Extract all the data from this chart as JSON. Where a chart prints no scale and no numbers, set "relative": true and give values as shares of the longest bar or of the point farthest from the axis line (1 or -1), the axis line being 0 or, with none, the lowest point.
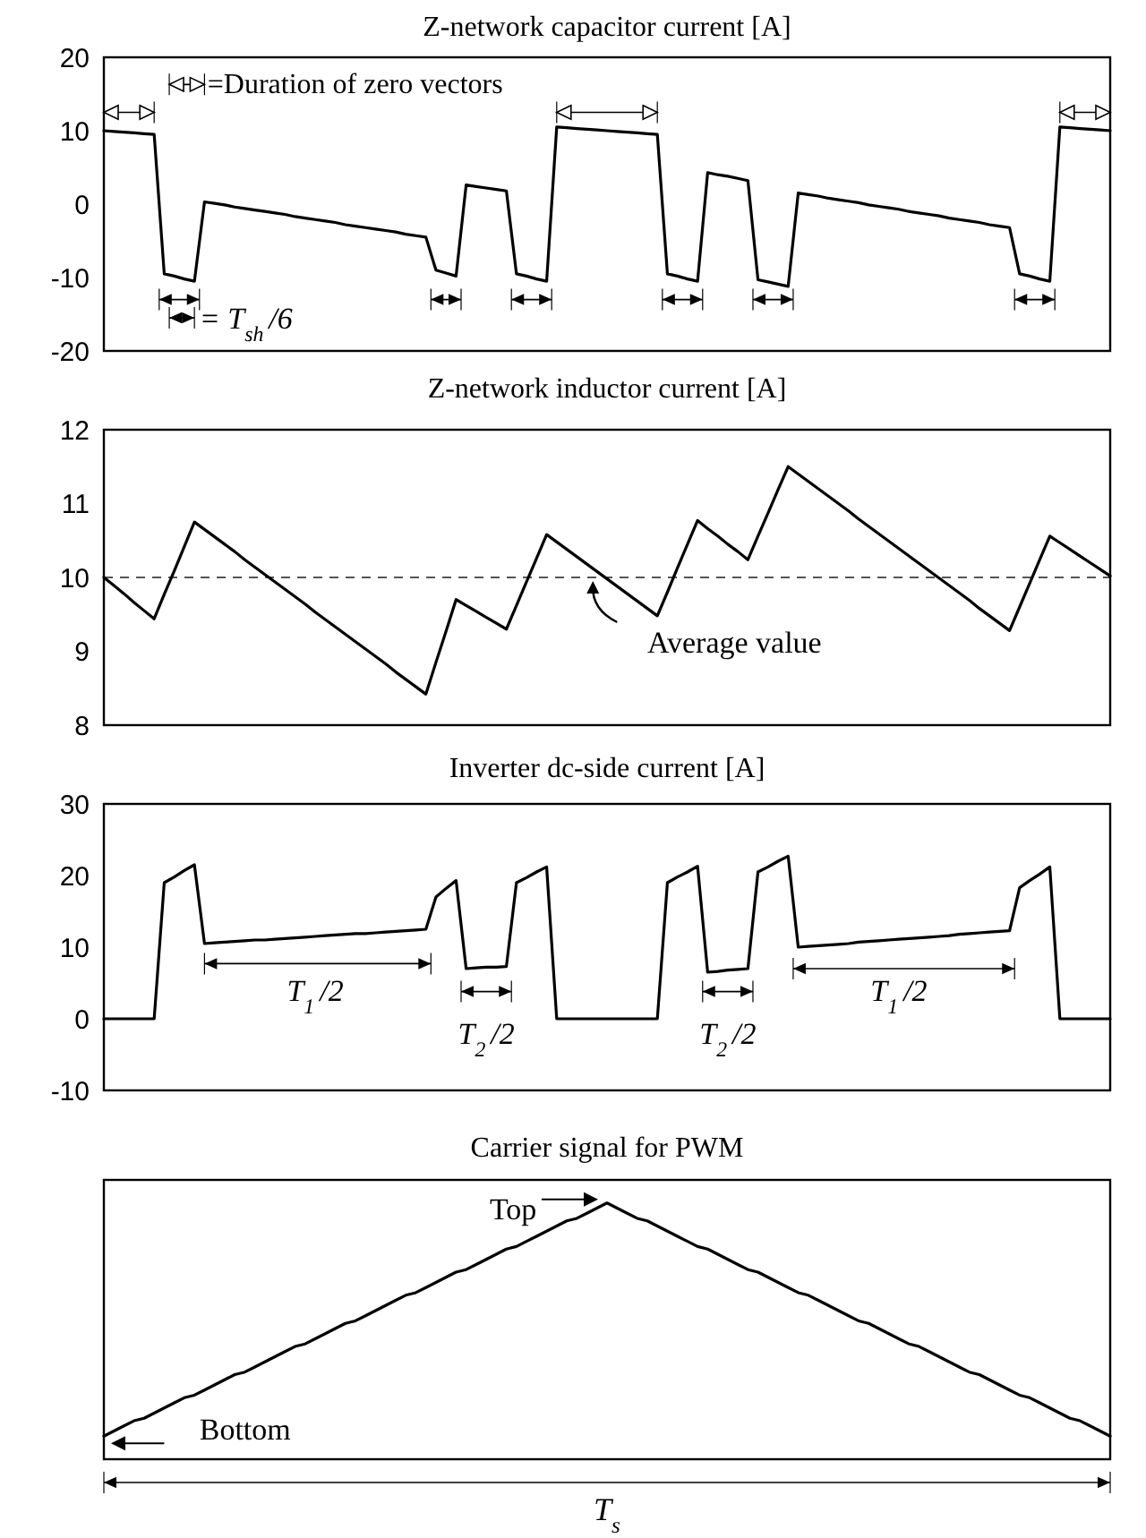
{
  "chart_data": [
    {
      "type": "line",
      "title": "Z-network capacitor current [A]",
      "categories": [
        null,
        null,
        null,
        null,
        null,
        null,
        null,
        null,
        null,
        null,
        null,
        null,
        null,
        null,
        null,
        null,
        null,
        null,
        null,
        null,
        null,
        null,
        null,
        null,
        null,
        null,
        null,
        null,
        null,
        null,
        null,
        null,
        null,
        null,
        null,
        null,
        null,
        null,
        null,
        null,
        null,
        null,
        null,
        null,
        null,
        null,
        null,
        null,
        null,
        null,
        null,
        null,
        null,
        null,
        null,
        null,
        null,
        null,
        null,
        null,
        null,
        null,
        null,
        null,
        null,
        null,
        null,
        null,
        null,
        null,
        null,
        null,
        null,
        null,
        null,
        null,
        null,
        null,
        null,
        null,
        null,
        null,
        null,
        null,
        null,
        null,
        null,
        null,
        null,
        null,
        null,
        null,
        null,
        null,
        null,
        null,
        null,
        null,
        null,
        null,
        null
      ],
      "ylim": [
        -20,
        20
      ],
      "yticks": [
        -20,
        -10,
        0,
        10,
        20
      ],
      "tick_labels": "y",
      "annotations": [
        "=Duration of zero vectors",
        "= T$_{sh}$/6"
      ],
      "series": [
        {
          "color": "#000000",
          "values": [
            10,
            9.9,
            9.8,
            9.7,
            9.6,
            9.5,
            -9.5,
            -9.8,
            -10.2,
            -10.5,
            0.3,
            0.1,
            -0.1,
            -0.4,
            -0.6,
            -0.8,
            -1.0,
            -1.2,
            -1.4,
            -1.7,
            -1.9,
            -2.1,
            -2.3,
            -2.5,
            -2.8,
            -3.0,
            -3.2,
            -3.4,
            -3.6,
            -3.8,
            -4.1,
            -4.3,
            -4.5,
            -9,
            -9.4,
            -9.8,
            2.6,
            2.4,
            2.2,
            2,
            1.8,
            -9.5,
            -9.8,
            -10.2,
            -10.5,
            10.5,
            10.4,
            10.3,
            10.2,
            10.1,
            10,
            9.9,
            9.8,
            9.7,
            9.6,
            9.5,
            -9.5,
            -9.8,
            -10.2,
            -10.5,
            4.3,
            4,
            3.8,
            3.5,
            3.2,
            -10.3,
            -10.6,
            -10.9,
            -11.2,
            1.5,
            1.3,
            1.1,
            0.8,
            0.6,
            0.4,
            0.2,
            -0.1,
            -0.3,
            -0.5,
            -0.7,
            -1.0,
            -1.2,
            -1.4,
            -1.6,
            -1.9,
            -2.1,
            -2.3,
            -2.5,
            -2.8,
            -3.0,
            -3.2,
            -9.5,
            -9.8,
            -10.2,
            -10.5,
            10.5,
            10.4,
            10.3,
            10.2,
            10.1,
            10
          ]
        }
      ]
    },
    {
      "type": "line",
      "title": "Z-network inductor current [A]",
      "categories": [
        null,
        null,
        null,
        null,
        null,
        null,
        null,
        null,
        null,
        null,
        null,
        null,
        null,
        null,
        null,
        null,
        null,
        null,
        null,
        null,
        null,
        null,
        null,
        null,
        null,
        null,
        null,
        null,
        null,
        null,
        null,
        null,
        null,
        null,
        null,
        null,
        null,
        null,
        null,
        null,
        null,
        null,
        null,
        null,
        null,
        null,
        null,
        null,
        null,
        null,
        null,
        null,
        null,
        null,
        null,
        null,
        null,
        null,
        null,
        null,
        null,
        null,
        null,
        null,
        null,
        null,
        null,
        null,
        null,
        null,
        null,
        null,
        null,
        null,
        null,
        null,
        null,
        null,
        null,
        null,
        null,
        null,
        null,
        null,
        null,
        null,
        null,
        null,
        null,
        null,
        null,
        null,
        null,
        null,
        null,
        null,
        null,
        null,
        null,
        null,
        null
      ],
      "ylim": [
        8,
        12
      ],
      "yticks": [
        8,
        9,
        10,
        11,
        12
      ],
      "tick_labels": "y",
      "ref_lines": [
        {
          "axis": "y",
          "value": 10,
          "label": "Average value",
          "line_style": "dashed",
          "color": "#555555"
        }
      ],
      "series": [
        {
          "color": "#000000",
          "values": [
            10,
            9.89,
            9.78,
            9.66,
            9.55,
            9.44,
            9.77,
            10.09,
            10.42,
            10.75,
            10.65,
            10.55,
            10.45,
            10.35,
            10.24,
            10.14,
            10.04,
            9.94,
            9.84,
            9.74,
            9.64,
            9.53,
            9.43,
            9.33,
            9.23,
            9.13,
            9.03,
            8.93,
            8.83,
            8.72,
            8.62,
            8.52,
            8.42,
            8.85,
            9.27,
            9.7,
            9.62,
            9.54,
            9.46,
            9.38,
            9.3,
            9.62,
            9.94,
            10.26,
            10.58,
            10.48,
            10.38,
            10.28,
            10.18,
            10.08,
            9.98,
            9.88,
            9.78,
            9.68,
            9.58,
            9.48,
            9.8,
            10.13,
            10.45,
            10.77,
            10.66,
            10.56,
            10.45,
            10.35,
            10.24,
            10.56,
            10.87,
            11.19,
            11.5,
            11.4,
            11.3,
            11.2,
            11.1,
            11.0,
            10.9,
            10.79,
            10.69,
            10.59,
            10.49,
            10.39,
            10.29,
            10.19,
            10.09,
            9.99,
            9.89,
            9.79,
            9.69,
            9.58,
            9.48,
            9.38,
            9.28,
            9.6,
            9.92,
            10.24,
            10.56,
            10.47,
            10.38,
            10.29,
            10.2,
            10.11,
            10.02
          ]
        }
      ]
    },
    {
      "type": "line",
      "title": "Inverter dc-side current [A]",
      "categories": [
        null,
        null,
        null,
        null,
        null,
        null,
        null,
        null,
        null,
        null,
        null,
        null,
        null,
        null,
        null,
        null,
        null,
        null,
        null,
        null,
        null,
        null,
        null,
        null,
        null,
        null,
        null,
        null,
        null,
        null,
        null,
        null,
        null,
        null,
        null,
        null,
        null,
        null,
        null,
        null,
        null,
        null,
        null,
        null,
        null,
        null,
        null,
        null,
        null,
        null,
        null,
        null,
        null,
        null,
        null,
        null,
        null,
        null,
        null,
        null,
        null,
        null,
        null,
        null,
        null,
        null,
        null,
        null,
        null,
        null,
        null,
        null,
        null,
        null,
        null,
        null,
        null,
        null,
        null,
        null,
        null,
        null,
        null,
        null,
        null,
        null,
        null,
        null,
        null,
        null,
        null,
        null,
        null,
        null,
        null,
        null,
        null,
        null,
        null,
        null,
        null
      ],
      "ylim": [
        -10,
        30
      ],
      "yticks": [
        -10,
        0,
        10,
        20,
        30
      ],
      "tick_labels": "y",
      "annotations": [
        "T$_{1}$/2",
        "T$_{2}$/2",
        "T$_{2}$/2",
        "T$_{1}$/2"
      ],
      "series": [
        {
          "color": "#000000",
          "values": [
            0,
            0,
            0,
            0,
            0,
            0,
            19,
            19.8,
            20.7,
            21.5,
            10.5,
            10.6,
            10.7,
            10.8,
            10.9,
            11,
            11,
            11.1,
            11.2,
            11.3,
            11.4,
            11.5,
            11.6,
            11.7,
            11.8,
            11.9,
            11.9,
            12,
            12.1,
            12.2,
            12.3,
            12.4,
            12.5,
            17,
            18.2,
            19.3,
            7,
            7.1,
            7.2,
            7.2,
            7.3,
            19,
            19.7,
            20.5,
            21.2,
            0,
            0,
            0,
            0,
            0,
            0,
            0,
            0,
            0,
            0,
            0,
            19,
            19.8,
            20.5,
            21.3,
            6.5,
            6.6,
            6.8,
            6.9,
            7,
            20.5,
            21.2,
            22,
            22.7,
            10,
            10.1,
            10.2,
            10.3,
            10.4,
            10.5,
            10.7,
            10.8,
            10.9,
            11,
            11.1,
            11.2,
            11.3,
            11.4,
            11.5,
            11.6,
            11.8,
            11.9,
            12,
            12.1,
            12.2,
            12.3,
            18.3,
            19.3,
            20.2,
            21.2,
            0,
            0,
            0,
            0,
            0,
            0
          ]
        }
      ]
    },
    {
      "type": "line",
      "title": "Carrier signal for PWM",
      "relative": true,
      "categories": [
        null,
        null,
        null,
        null,
        null,
        null,
        null,
        null,
        null,
        null,
        null,
        null,
        null,
        null,
        null,
        null,
        null,
        null,
        null,
        null,
        null,
        null,
        null,
        null,
        null,
        null,
        null,
        null,
        null,
        null,
        null,
        null,
        null,
        null,
        null,
        null,
        null,
        null,
        null,
        null,
        null,
        null,
        null,
        null,
        null,
        null,
        null,
        null,
        null,
        null,
        null,
        null,
        null,
        null,
        null,
        null,
        null,
        null,
        null,
        null,
        null,
        null,
        null,
        null,
        null,
        null,
        null,
        null,
        null,
        null,
        null,
        null,
        null,
        null,
        null,
        null,
        null,
        null,
        null,
        null,
        null,
        null,
        null,
        null,
        null,
        null,
        null,
        null,
        null,
        null,
        null,
        null,
        null,
        null,
        null,
        null,
        null,
        null,
        null,
        null,
        null
      ],
      "annotations": [
        "Top",
        "Bottom",
        "T$_{s}$"
      ],
      "series": [
        {
          "color": "#000000",
          "values": [
            0.09,
            0.11,
            0.13,
            0.15,
            0.16,
            0.18,
            0.2,
            0.22,
            0.24,
            0.25,
            0.27,
            0.29,
            0.31,
            0.33,
            0.34,
            0.36,
            0.38,
            0.4,
            0.42,
            0.44,
            0.45,
            0.47,
            0.49,
            0.51,
            0.53,
            0.54,
            0.56,
            0.58,
            0.6,
            0.62,
            0.64,
            0.65,
            0.67,
            0.69,
            0.71,
            0.73,
            0.74,
            0.76,
            0.78,
            0.8,
            0.82,
            0.83,
            0.85,
            0.87,
            0.89,
            0.91,
            0.93,
            0.94,
            0.96,
            0.98,
            1,
            0.98,
            0.96,
            0.94,
            0.93,
            0.91,
            0.89,
            0.87,
            0.85,
            0.83,
            0.82,
            0.8,
            0.78,
            0.76,
            0.74,
            0.73,
            0.71,
            0.69,
            0.67,
            0.65,
            0.64,
            0.62,
            0.6,
            0.58,
            0.56,
            0.54,
            0.53,
            0.51,
            0.49,
            0.47,
            0.45,
            0.44,
            0.42,
            0.4,
            0.38,
            0.36,
            0.34,
            0.33,
            0.31,
            0.29,
            0.27,
            0.25,
            0.24,
            0.22,
            0.2,
            0.18,
            0.16,
            0.15,
            0.13,
            0.11,
            0.09
          ]
        }
      ]
    }
  ]
}
